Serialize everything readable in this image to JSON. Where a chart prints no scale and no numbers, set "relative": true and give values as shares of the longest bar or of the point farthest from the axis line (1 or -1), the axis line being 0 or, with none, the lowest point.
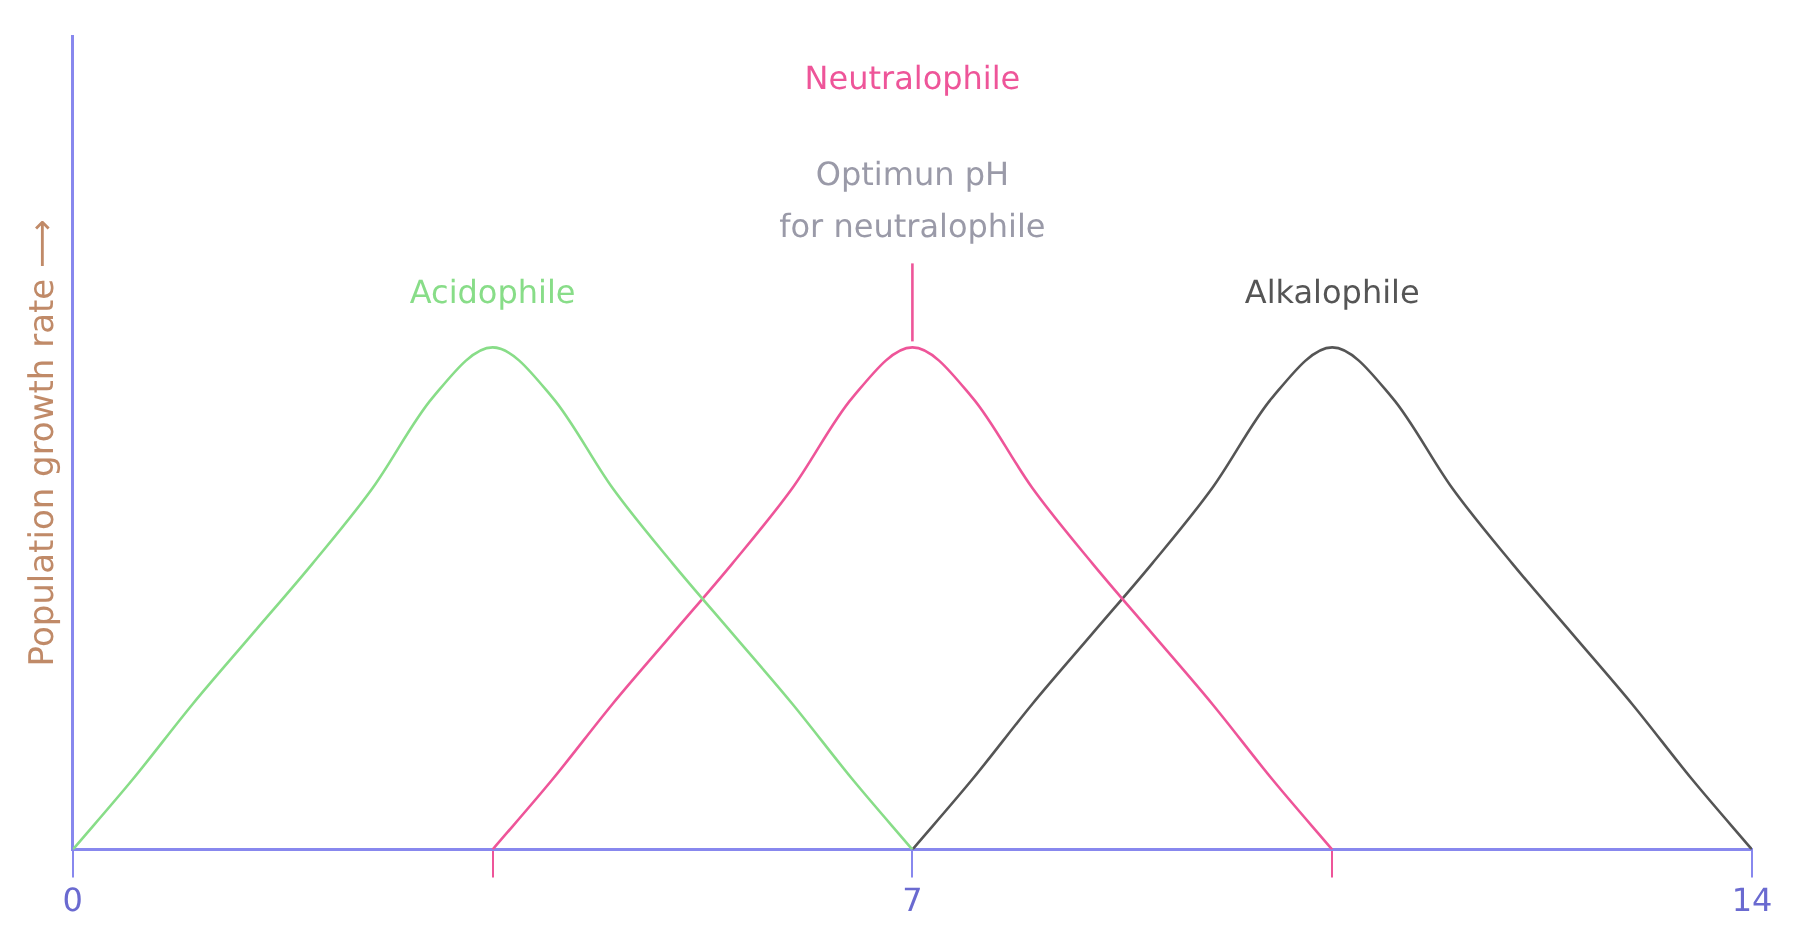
{
  "chart_data": {
    "type": "line",
    "relative": true,
    "xlabel": null,
    "ylabel": "Population growth rate ⟶",
    "xlim": [
      0,
      14
    ],
    "xticks": [
      0,
      {
        "value": 3.5,
        "label": null
      },
      7,
      {
        "value": 10.5,
        "label": null
      },
      14
    ],
    "tick_labels": "x",
    "grid": false,
    "legend": false,
    "marker": "none",
    "line_style": "solid",
    "series": [
      {
        "name": "Acidophile",
        "color": "#88dd88",
        "x": [
          0,
          0.5,
          1,
          1.5,
          2,
          2.5,
          3,
          3.5,
          4,
          4.5,
          5,
          5.5,
          6,
          6.5,
          7
        ],
        "values": [
          0,
          0.14,
          0.29,
          0.43,
          0.57,
          0.72,
          0.9,
          1,
          0.9,
          0.72,
          0.57,
          0.43,
          0.29,
          0.14,
          0
        ]
      },
      {
        "name": "Neutralophile",
        "color": "#ee5599",
        "x": [
          3.5,
          4,
          4.5,
          5,
          5.5,
          6,
          6.5,
          7,
          7.5,
          8,
          8.5,
          9,
          9.5,
          10,
          10.5
        ],
        "values": [
          0,
          0.14,
          0.29,
          0.43,
          0.57,
          0.72,
          0.9,
          1,
          0.9,
          0.72,
          0.57,
          0.43,
          0.29,
          0.14,
          0
        ]
      },
      {
        "name": "Alkalophile",
        "color": "#555555",
        "x": [
          7,
          7.5,
          8,
          8.5,
          9,
          9.5,
          10,
          10.5,
          11,
          11.5,
          12,
          12.5,
          13,
          13.5,
          14
        ],
        "values": [
          0,
          0.14,
          0.29,
          0.43,
          0.57,
          0.72,
          0.9,
          1,
          0.9,
          0.72,
          0.57,
          0.43,
          0.29,
          0.14,
          0
        ]
      }
    ],
    "annotations": [
      {
        "text": "Optimun pH\nfor neutralophile",
        "x": 7,
        "y": 1
      }
    ]
  }
}
